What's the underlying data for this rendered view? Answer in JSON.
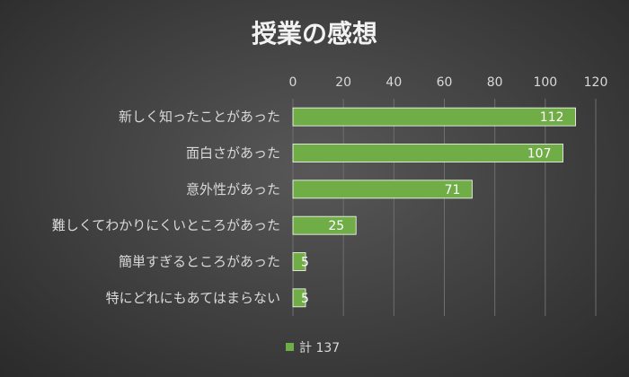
{
  "chart_data": {
    "type": "bar",
    "orientation": "horizontal",
    "title": "授業の感想",
    "categories": [
      "新しく知ったことがあった",
      "面白さがあった",
      "意外性があった",
      "難しくてわかりにくいところがあった",
      "簡単すぎるところがあった",
      "特にどれにもあてはまらない"
    ],
    "series": [
      {
        "name": "計 137",
        "values": [
          112,
          107,
          71,
          25,
          5,
          5
        ]
      }
    ],
    "xlim": [
      0,
      120
    ],
    "ticks": [
      0,
      20,
      40,
      60,
      80,
      100,
      120
    ],
    "xaxis_position": "top",
    "grid": true,
    "legend": "bottom",
    "data_labels": true,
    "colors": {
      "bar": "#70ad47",
      "bar_outline": "#ffffff",
      "gridline": "#6e6e6e",
      "text": "#d9d9d9"
    }
  }
}
